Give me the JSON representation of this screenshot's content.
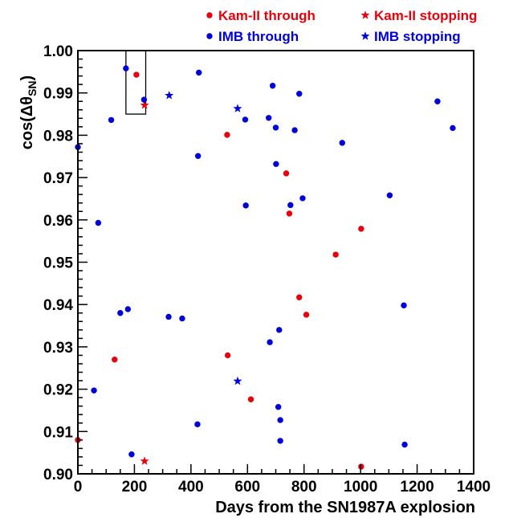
{
  "chart_data": {
    "type": "scatter",
    "title": "",
    "xlabel": "Days from the SN1987A explosion",
    "ylabel_main": "cos(Δθ",
    "ylabel_sub": "SN",
    "ylabel_close": ")",
    "xlim": [
      0,
      1400
    ],
    "ylim": [
      0.9,
      1.0
    ],
    "x_ticks": [
      0,
      200,
      400,
      600,
      800,
      1000,
      1200,
      1400
    ],
    "x_tick_labels": [
      "0",
      "200",
      "400",
      "600",
      "800",
      "1000",
      "1200",
      "1400"
    ],
    "y_ticks": [
      0.9,
      0.91,
      0.92,
      0.93,
      0.94,
      0.95,
      0.96,
      0.97,
      0.98,
      0.99,
      1.0
    ],
    "y_tick_labels": [
      "0.90",
      "0.91",
      "0.92",
      "0.93",
      "0.94",
      "0.95",
      "0.96",
      "0.97",
      "0.98",
      "0.99",
      "1.00"
    ],
    "grid": false,
    "legend_position": "top, above plot",
    "highlight_box": {
      "x": [
        170,
        240
      ],
      "y": [
        0.985,
        1.0
      ]
    },
    "series": [
      {
        "name": "Kam-II through",
        "marker": "circle",
        "color": "#e8000b",
        "points": [
          [
            0,
            0.908
          ],
          [
            130,
            0.927
          ],
          [
            207,
            0.9943
          ],
          [
            528,
            0.9801
          ],
          [
            530,
            0.928
          ],
          [
            612,
            0.9176
          ],
          [
            737,
            0.971
          ],
          [
            748,
            0.9615
          ],
          [
            783,
            0.9417
          ],
          [
            808,
            0.9376
          ],
          [
            912,
            0.9518
          ],
          [
            1002,
            0.9579
          ],
          [
            1002,
            0.9017
          ]
        ]
      },
      {
        "name": "Kam-II stopping",
        "marker": "star",
        "color": "#e8000b",
        "points": [
          [
            236,
            0.9871
          ],
          [
            236,
            0.903
          ]
        ]
      },
      {
        "name": "IMB through",
        "marker": "circle",
        "color": "#0000dd",
        "points": [
          [
            0,
            0.9772
          ],
          [
            57,
            0.9197
          ],
          [
            72,
            0.9593
          ],
          [
            118,
            0.9836
          ],
          [
            150,
            0.938
          ],
          [
            170,
            0.9958
          ],
          [
            177,
            0.9389
          ],
          [
            190,
            0.9046
          ],
          [
            234,
            0.9884
          ],
          [
            321,
            0.9371
          ],
          [
            369,
            0.9367
          ],
          [
            423,
            0.9117
          ],
          [
            425,
            0.9751
          ],
          [
            428,
            0.9948
          ],
          [
            592,
            0.9837
          ],
          [
            594,
            0.9634
          ],
          [
            675,
            0.9841
          ],
          [
            679,
            0.9311
          ],
          [
            689,
            0.9917
          ],
          [
            700,
            0.9818
          ],
          [
            701,
            0.9732
          ],
          [
            709,
            0.9158
          ],
          [
            712,
            0.934
          ],
          [
            716,
            0.9078
          ],
          [
            716,
            0.9127
          ],
          [
            752,
            0.9635
          ],
          [
            767,
            0.9812
          ],
          [
            783,
            0.9898
          ],
          [
            795,
            0.9651
          ],
          [
            935,
            0.9782
          ],
          [
            1103,
            0.9658
          ],
          [
            1153,
            0.9398
          ],
          [
            1156,
            0.9069
          ],
          [
            1272,
            0.988
          ],
          [
            1326,
            0.9817
          ]
        ]
      },
      {
        "name": "IMB stopping",
        "marker": "star",
        "color": "#0000dd",
        "points": [
          [
            323,
            0.9894
          ],
          [
            565,
            0.9863
          ],
          [
            565,
            0.9219
          ]
        ]
      }
    ]
  }
}
